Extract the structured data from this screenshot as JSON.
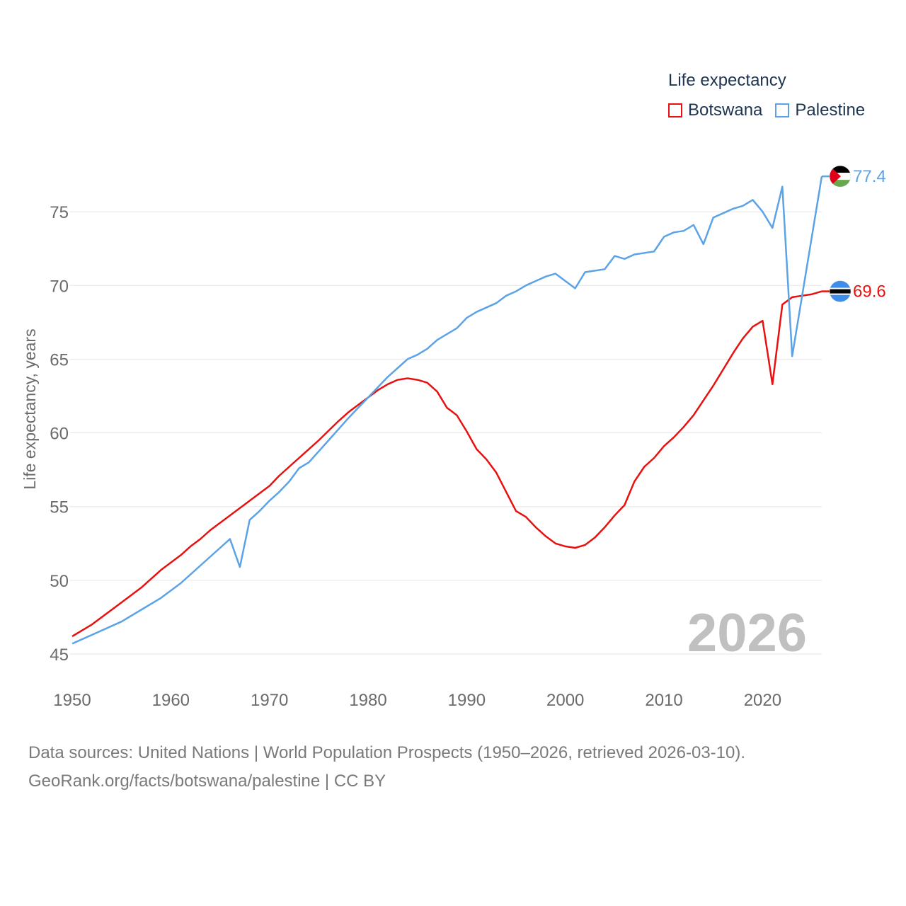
{
  "chart_data": {
    "type": "line",
    "ylabel": "Life expectancy, years",
    "xlim": [
      1950,
      2026
    ],
    "ylim": [
      45,
      78
    ],
    "yticks": [
      45,
      50,
      55,
      60,
      65,
      70,
      75
    ],
    "xticks": [
      1950,
      1960,
      1970,
      1980,
      1990,
      2000,
      2010,
      2020
    ],
    "current_year": "2026",
    "legend_title": "Life expectancy",
    "series": [
      {
        "name": "Botswana",
        "color": "#e8110f",
        "end_value": 69.6,
        "end_label": "69.6",
        "flag_icon": "botswana-flag-icon",
        "x": [
          1950,
          1952,
          1955,
          1957,
          1959,
          1961,
          1962,
          1963,
          1964,
          1966,
          1968,
          1970,
          1971,
          1973,
          1975,
          1977,
          1978,
          1980,
          1981,
          1982,
          1983,
          1984,
          1985,
          1986,
          1987,
          1988,
          1989,
          1990,
          1991,
          1992,
          1993,
          1994,
          1995,
          1996,
          1997,
          1998,
          1999,
          2000,
          2001,
          2002,
          2003,
          2004,
          2005,
          2006,
          2007,
          2008,
          2009,
          2010,
          2011,
          2012,
          2013,
          2014,
          2015,
          2016,
          2017,
          2018,
          2019,
          2020,
          2021,
          2022,
          2023,
          2024,
          2025,
          2026
        ],
        "y": [
          46.2,
          47.0,
          48.5,
          49.5,
          50.7,
          51.7,
          52.3,
          52.8,
          53.4,
          54.4,
          55.4,
          56.4,
          57.1,
          58.3,
          59.5,
          60.8,
          61.4,
          62.4,
          62.9,
          63.3,
          63.6,
          63.7,
          63.6,
          63.4,
          62.8,
          61.7,
          61.2,
          60.1,
          58.9,
          58.2,
          57.3,
          56.0,
          54.7,
          54.3,
          53.6,
          53.0,
          52.5,
          52.3,
          52.2,
          52.4,
          52.9,
          53.6,
          54.4,
          55.1,
          56.7,
          57.7,
          58.3,
          59.1,
          59.7,
          60.4,
          61.2,
          62.2,
          63.2,
          64.3,
          65.4,
          66.4,
          67.2,
          67.6,
          63.3,
          68.7,
          69.2,
          69.3,
          69.4,
          69.6
        ]
      },
      {
        "name": "Palestine",
        "color": "#5ba3e6",
        "end_value": 77.4,
        "end_label": "77.4",
        "flag_icon": "palestine-flag-icon",
        "x": [
          1950,
          1955,
          1957,
          1959,
          1961,
          1963,
          1965,
          1966,
          1967,
          1968,
          1969,
          1970,
          1971,
          1972,
          1973,
          1974,
          1976,
          1978,
          1980,
          1982,
          1984,
          1985,
          1986,
          1987,
          1989,
          1990,
          1991,
          1993,
          1994,
          1995,
          1996,
          1997,
          1998,
          1999,
          2000,
          2001,
          2002,
          2004,
          2005,
          2006,
          2007,
          2009,
          2010,
          2011,
          2012,
          2013,
          2014,
          2015,
          2016,
          2017,
          2018,
          2019,
          2020,
          2021,
          2022,
          2023,
          2026
        ],
        "y": [
          45.7,
          47.2,
          48.0,
          48.8,
          49.8,
          51.0,
          52.2,
          52.8,
          50.9,
          54.1,
          54.7,
          55.4,
          56.0,
          56.7,
          57.6,
          58.0,
          59.5,
          61.0,
          62.4,
          63.8,
          65.0,
          65.3,
          65.7,
          66.3,
          67.1,
          67.8,
          68.2,
          68.8,
          69.3,
          69.6,
          70.0,
          70.3,
          70.6,
          70.8,
          70.3,
          69.8,
          70.9,
          71.1,
          72.0,
          71.8,
          72.1,
          72.3,
          73.3,
          73.6,
          73.7,
          74.1,
          72.8,
          74.6,
          74.9,
          75.2,
          75.4,
          75.8,
          75.0,
          73.9,
          76.7,
          65.2,
          77.4
        ]
      }
    ]
  },
  "footer": {
    "sources": "Data sources: United Nations | World Population Prospects (1950–2026, retrieved 2026-03-10).",
    "site": "GeoRank.org/facts/botswana/palestine | CC BY"
  }
}
